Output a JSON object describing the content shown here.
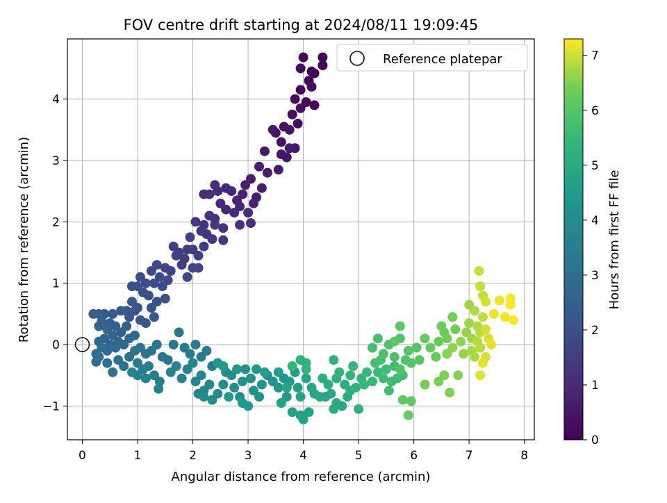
{
  "chart_data": {
    "type": "scatter",
    "title": "FOV centre drift starting at 2024/08/11 19:09:45",
    "xlabel": "Angular distance from reference (arcmin)",
    "ylabel": "Rotation from reference (arcmin)",
    "xlim": [
      -0.27,
      8.18
    ],
    "ylim": [
      -1.55,
      4.98
    ],
    "xticks": [
      "0",
      "1",
      "2",
      "3",
      "4",
      "5",
      "6",
      "7",
      "8"
    ],
    "yticks": [
      "−1",
      "0",
      "1",
      "2",
      "3",
      "4"
    ],
    "grid": true,
    "legend": {
      "position": "upper-right",
      "entries": [
        "Reference platepar"
      ]
    },
    "colorbar": {
      "label": "Hours from first FF file",
      "range": [
        0,
        7.3
      ],
      "ticks": [
        "0",
        "1",
        "2",
        "3",
        "4",
        "5",
        "6",
        "7"
      ],
      "colormap": "viridis"
    },
    "reference_point": {
      "x": 0,
      "y": 0
    },
    "series": [
      {
        "description_of_encoding": "points ordered in time; color = hours from first FF file",
        "points": [
          [
            4.35,
            4.68
          ],
          [
            4.15,
            4.45
          ],
          [
            4.2,
            4.42
          ],
          [
            4.0,
            4.68
          ],
          [
            4.35,
            4.55
          ],
          [
            4.1,
            4.3
          ],
          [
            3.95,
            4.15
          ],
          [
            4.05,
            3.95
          ],
          [
            4.2,
            3.9
          ],
          [
            3.85,
            4.0
          ],
          [
            3.95,
            4.5
          ],
          [
            4.15,
            4.2
          ],
          [
            3.9,
            3.6
          ],
          [
            3.8,
            3.75
          ],
          [
            3.95,
            3.85
          ],
          [
            3.65,
            3.55
          ],
          [
            3.5,
            3.45
          ],
          [
            3.6,
            3.3
          ],
          [
            3.75,
            3.5
          ],
          [
            3.85,
            3.2
          ],
          [
            3.7,
            3.05
          ],
          [
            3.6,
            3.1
          ],
          [
            3.45,
            3.5
          ],
          [
            3.3,
            3.15
          ],
          [
            3.75,
            3.2
          ],
          [
            3.55,
            2.85
          ],
          [
            3.35,
            2.8
          ],
          [
            3.2,
            2.9
          ],
          [
            3.05,
            2.7
          ],
          [
            3.25,
            2.55
          ],
          [
            3.15,
            2.4
          ],
          [
            2.95,
            2.6
          ],
          [
            2.9,
            2.45
          ],
          [
            3.1,
            2.3
          ],
          [
            2.85,
            2.25
          ],
          [
            2.7,
            2.5
          ],
          [
            2.8,
            2.35
          ],
          [
            2.6,
            2.2
          ],
          [
            2.5,
            2.3
          ],
          [
            2.75,
            2.15
          ],
          [
            3.0,
            2.15
          ],
          [
            2.6,
            2.55
          ],
          [
            2.45,
            2.5
          ],
          [
            2.3,
            2.45
          ],
          [
            2.4,
            2.6
          ],
          [
            2.2,
            2.45
          ],
          [
            2.85,
            1.95
          ],
          [
            3.05,
            1.98
          ],
          [
            2.55,
            1.9
          ],
          [
            2.4,
            2.05
          ],
          [
            2.3,
            2.1
          ],
          [
            2.2,
            1.95
          ],
          [
            2.15,
            1.85
          ],
          [
            2.25,
            1.8
          ],
          [
            2.05,
            2.0
          ],
          [
            2.35,
            1.72
          ],
          [
            2.4,
            1.95
          ],
          [
            2.55,
            1.7
          ],
          [
            2.0,
            1.55
          ],
          [
            2.2,
            1.6
          ],
          [
            2.1,
            1.45
          ],
          [
            1.9,
            1.55
          ],
          [
            1.75,
            1.5
          ],
          [
            1.65,
            1.6
          ],
          [
            1.85,
            1.4
          ],
          [
            1.8,
            1.3
          ],
          [
            1.7,
            1.45
          ],
          [
            1.6,
            1.2
          ],
          [
            1.95,
            1.75
          ],
          [
            2.1,
            1.25
          ],
          [
            2.0,
            1.25
          ],
          [
            1.9,
            1.1
          ],
          [
            1.5,
            1.25
          ],
          [
            1.35,
            1.3
          ],
          [
            1.25,
            1.2
          ],
          [
            1.4,
            1.1
          ],
          [
            1.55,
            1.05
          ],
          [
            1.45,
            0.95
          ],
          [
            1.3,
            1.0
          ],
          [
            1.15,
            1.0
          ],
          [
            1.05,
            1.1
          ],
          [
            1.0,
            0.95
          ],
          [
            0.9,
            0.95
          ],
          [
            1.1,
            0.85
          ],
          [
            1.2,
            0.8
          ],
          [
            1.35,
            0.7
          ],
          [
            1.5,
            0.75
          ],
          [
            1.25,
            0.6
          ],
          [
            1.0,
            0.6
          ],
          [
            0.95,
            0.55
          ],
          [
            0.85,
            0.45
          ],
          [
            0.8,
            0.55
          ],
          [
            1.05,
            0.4
          ],
          [
            1.15,
            0.35
          ],
          [
            1.3,
            0.45
          ],
          [
            0.9,
            0.7
          ],
          [
            0.7,
            0.55
          ],
          [
            0.55,
            0.5
          ],
          [
            0.4,
            0.5
          ],
          [
            0.3,
            0.5
          ],
          [
            0.2,
            0.5
          ],
          [
            0.35,
            0.38
          ],
          [
            0.5,
            0.35
          ],
          [
            0.6,
            0.3
          ],
          [
            0.45,
            0.25
          ],
          [
            0.3,
            0.3
          ],
          [
            0.7,
            0.2
          ],
          [
            0.8,
            0.3
          ],
          [
            0.55,
            0.15
          ],
          [
            0.4,
            0.1
          ],
          [
            0.3,
            0.05
          ],
          [
            0.5,
            0.0
          ],
          [
            0.65,
            0.05
          ],
          [
            0.75,
            0.0
          ],
          [
            0.85,
            0.1
          ],
          [
            0.95,
            0.15
          ],
          [
            0.6,
            -0.05
          ],
          [
            0.45,
            -0.1
          ],
          [
            0.35,
            -0.05
          ],
          [
            0.25,
            -0.15
          ],
          [
            0.25,
            -0.28
          ],
          [
            0.3,
            -0.2
          ],
          [
            0.45,
            -0.3
          ],
          [
            0.55,
            -0.45
          ],
          [
            0.65,
            -0.25
          ],
          [
            0.75,
            -0.35
          ],
          [
            0.85,
            -0.2
          ],
          [
            0.95,
            -0.1
          ],
          [
            1.05,
            -0.05
          ],
          [
            1.15,
            -0.15
          ],
          [
            1.25,
            -0.1
          ],
          [
            1.35,
            0.0
          ],
          [
            1.45,
            -0.2
          ],
          [
            1.55,
            -0.25
          ],
          [
            1.65,
            0.0
          ],
          [
            1.75,
            0.2
          ],
          [
            1.85,
            -0.05
          ],
          [
            1.95,
            -0.15
          ],
          [
            2.05,
            0.0
          ],
          [
            2.15,
            -0.2
          ],
          [
            2.25,
            -0.1
          ],
          [
            2.35,
            -0.35
          ],
          [
            1.0,
            -0.3
          ],
          [
            1.1,
            -0.4
          ],
          [
            1.2,
            -0.35
          ],
          [
            1.3,
            -0.5
          ],
          [
            1.4,
            -0.6
          ],
          [
            1.0,
            -0.5
          ],
          [
            0.9,
            -0.45
          ],
          [
            1.15,
            -0.55
          ],
          [
            1.38,
            -0.72
          ],
          [
            1.6,
            -0.45
          ],
          [
            1.7,
            -0.35
          ],
          [
            1.8,
            -0.55
          ],
          [
            1.9,
            -0.4
          ],
          [
            2.0,
            -0.3
          ],
          [
            2.05,
            -0.6
          ],
          [
            2.15,
            -0.5
          ],
          [
            2.2,
            -0.75
          ],
          [
            2.3,
            -0.65
          ],
          [
            2.1,
            -0.8
          ],
          [
            2.2,
            -0.85
          ],
          [
            2.35,
            -0.9
          ],
          [
            2.45,
            -0.8
          ],
          [
            2.55,
            -0.65
          ],
          [
            2.6,
            -0.45
          ],
          [
            2.7,
            -0.5
          ],
          [
            2.75,
            -0.7
          ],
          [
            2.85,
            -0.85
          ],
          [
            2.9,
            -0.6
          ],
          [
            2.95,
            -0.4
          ],
          [
            3.05,
            -0.55
          ],
          [
            3.1,
            -0.75
          ],
          [
            3.2,
            -0.85
          ],
          [
            3.25,
            -0.65
          ],
          [
            3.35,
            -0.5
          ],
          [
            3.45,
            -0.6
          ],
          [
            3.55,
            -0.7
          ],
          [
            3.65,
            -0.55
          ],
          [
            3.7,
            -0.85
          ],
          [
            2.8,
            -0.4
          ],
          [
            2.9,
            -0.95
          ],
          [
            3.0,
            -1.0
          ],
          [
            2.55,
            -0.35
          ],
          [
            2.45,
            -0.3
          ],
          [
            2.65,
            -0.85
          ],
          [
            3.15,
            -0.4
          ],
          [
            3.3,
            -0.45
          ],
          [
            3.55,
            -0.45
          ],
          [
            3.75,
            -0.6
          ],
          [
            3.85,
            -0.45
          ],
          [
            3.9,
            -0.7
          ],
          [
            3.8,
            -1.1
          ],
          [
            3.95,
            -1.15
          ],
          [
            4.0,
            -1.22
          ],
          [
            4.1,
            -1.1
          ],
          [
            3.6,
            -0.95
          ],
          [
            3.7,
            -0.7
          ],
          [
            3.95,
            -0.85
          ],
          [
            4.05,
            -0.55
          ],
          [
            4.15,
            -0.7
          ],
          [
            4.2,
            -0.8
          ],
          [
            4.3,
            -0.85
          ],
          [
            4.4,
            -0.85
          ],
          [
            4.5,
            -0.8
          ],
          [
            4.6,
            -0.95
          ],
          [
            4.7,
            -1.0
          ],
          [
            4.8,
            -0.85
          ],
          [
            4.55,
            -1.05
          ],
          [
            4.35,
            -0.55
          ],
          [
            4.45,
            -0.65
          ],
          [
            4.6,
            -0.55
          ],
          [
            4.75,
            -0.65
          ],
          [
            4.85,
            -0.75
          ],
          [
            4.95,
            -0.7
          ],
          [
            5.0,
            -1.05
          ],
          [
            3.95,
            -0.25
          ],
          [
            4.05,
            -0.3
          ],
          [
            4.55,
            -0.25
          ],
          [
            4.05,
            -0.4
          ],
          [
            3.8,
            -0.35
          ],
          [
            4.65,
            -0.45
          ],
          [
            4.85,
            -0.5
          ],
          [
            4.9,
            -0.35
          ],
          [
            5.05,
            -0.55
          ],
          [
            5.15,
            -0.45
          ],
          [
            5.1,
            -0.65
          ],
          [
            5.25,
            -0.6
          ],
          [
            5.35,
            -0.45
          ],
          [
            5.45,
            -0.55
          ],
          [
            5.5,
            -0.4
          ],
          [
            5.55,
            -0.75
          ],
          [
            5.6,
            -0.6
          ],
          [
            5.7,
            -0.55
          ],
          [
            5.8,
            -0.5
          ],
          [
            5.65,
            -0.35
          ],
          [
            5.4,
            -0.25
          ],
          [
            5.3,
            -0.3
          ],
          [
            5.25,
            -0.05
          ],
          [
            5.35,
            0.1
          ],
          [
            5.45,
            -0.15
          ],
          [
            5.55,
            0.0
          ],
          [
            5.65,
            -0.2
          ],
          [
            5.75,
            0.1
          ],
          [
            5.85,
            -0.25
          ],
          [
            5.75,
            -0.4
          ],
          [
            5.9,
            -0.1
          ],
          [
            5.95,
            -0.3
          ],
          [
            6.05,
            -0.05
          ],
          [
            6.1,
            -0.25
          ],
          [
            5.75,
            0.3
          ],
          [
            5.65,
            0.05
          ],
          [
            5.8,
            -0.9
          ],
          [
            5.95,
            -0.92
          ],
          [
            5.9,
            -1.15
          ],
          [
            6.2,
            0.1
          ],
          [
            6.3,
            -0.05
          ],
          [
            6.4,
            -0.2
          ],
          [
            6.45,
            0.05
          ],
          [
            6.55,
            0.2
          ],
          [
            6.5,
            0.3
          ],
          [
            6.6,
            0.1
          ],
          [
            6.7,
            0.45
          ],
          [
            6.75,
            0.25
          ],
          [
            6.2,
            -0.65
          ],
          [
            6.45,
            -0.6
          ],
          [
            6.55,
            -0.5
          ],
          [
            6.65,
            -0.78
          ],
          [
            6.8,
            -0.5
          ],
          [
            6.6,
            -0.15
          ],
          [
            6.7,
            -0.05
          ],
          [
            6.85,
            0.05
          ],
          [
            6.9,
            -0.15
          ],
          [
            6.95,
            0.2
          ],
          [
            7.0,
            0.35
          ],
          [
            7.0,
            0.65
          ],
          [
            7.05,
            0.1
          ],
          [
            7.05,
            -0.1
          ],
          [
            7.1,
            -0.2
          ],
          [
            7.15,
            0.3
          ],
          [
            7.1,
            0.55
          ],
          [
            7.15,
            0.05
          ],
          [
            7.2,
            -0.05
          ],
          [
            7.2,
            0.2
          ],
          [
            7.25,
            0.45
          ],
          [
            7.25,
            0.8
          ],
          [
            7.2,
            0.95
          ],
          [
            7.18,
            1.2
          ],
          [
            7.3,
            0.7
          ],
          [
            7.3,
            0.25
          ],
          [
            7.35,
            0.1
          ],
          [
            7.3,
            -0.2
          ],
          [
            7.2,
            -0.5
          ],
          [
            7.25,
            -0.3
          ],
          [
            7.4,
            0.0
          ],
          [
            7.45,
            0.5
          ],
          [
            7.55,
            0.72
          ],
          [
            7.65,
            0.45
          ],
          [
            7.75,
            0.75
          ],
          [
            7.75,
            0.65
          ],
          [
            7.8,
            0.4
          ]
        ]
      }
    ]
  }
}
